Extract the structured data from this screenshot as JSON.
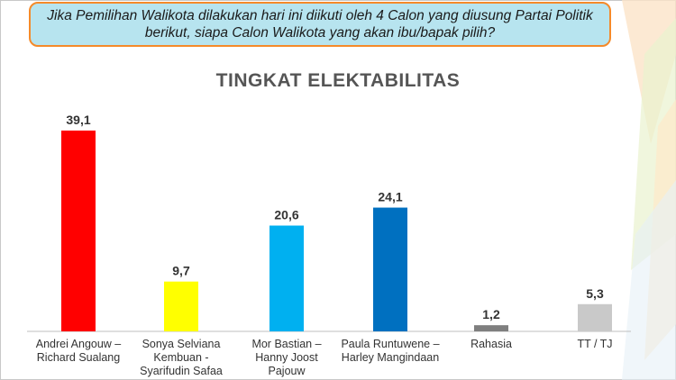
{
  "question": {
    "line1": "Jika Pemilihan Walikota dilakukan hari ini diikuti oleh 4 Calon yang diusung Partai Politik",
    "line2": "berikut, siapa Calon Walikota yang akan ibu/bapak pilih?"
  },
  "colors": {
    "question_bg": "#b7e4ef",
    "question_border": "#f58a2a",
    "title": "#555555"
  },
  "chart_data": {
    "type": "bar",
    "title": "TINGKAT ELEKTABILITAS",
    "xlabel": "",
    "ylabel": "",
    "ylim": [
      0,
      40
    ],
    "grid": false,
    "legend": "none",
    "categories": [
      [
        "Andrei Angouw –",
        "Richard Sualang"
      ],
      [
        "Sonya Selviana",
        "Kembuan -",
        "Syarifudin Safaa"
      ],
      [
        "Mor Bastian –",
        "Hanny Joost",
        "Pajouw"
      ],
      [
        "Paula Runtuwene –",
        "Harley Mangindaan"
      ],
      [
        "Rahasia"
      ],
      [
        "TT / TJ"
      ]
    ],
    "values": [
      39.1,
      9.7,
      20.6,
      24.1,
      1.2,
      5.3
    ],
    "value_labels": [
      "39,1",
      "9,7",
      "20,6",
      "24,1",
      "1,2",
      "5,3"
    ],
    "bar_colors": [
      "#ff0000",
      "#ffff00",
      "#00b0f0",
      "#0070c0",
      "#7f7f7f",
      "#c9c9c9"
    ]
  }
}
